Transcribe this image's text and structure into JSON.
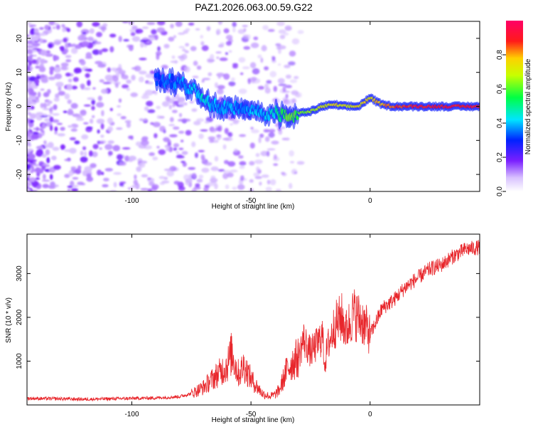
{
  "figure_title": "PAZ1.2026.063.00.59.G22",
  "colors": {
    "snr_line": "#e8262b",
    "ridge_low": "#7a1fff",
    "ridge_mid": "#00e5ff",
    "ridge_high": "#ff1a1a",
    "frame": "#000000"
  },
  "chart_data": [
    {
      "type": "heatmap",
      "title": "PAZ1.2026.063.00.59.G22",
      "xlabel": "Height of straight line (km)",
      "ylabel": "Frequency (Hz)",
      "xlim": [
        -144,
        46
      ],
      "ylim": [
        -25,
        25
      ],
      "x_ticks": [
        -100,
        -50,
        0
      ],
      "x_tick_labels": [
        "-100",
        "-50",
        "0"
      ],
      "y_ticks": [
        20,
        10,
        0,
        -10,
        -20
      ],
      "y_tick_labels": [
        "20",
        "10",
        "0",
        "-10",
        "-20"
      ],
      "colorbar": {
        "label": "Normalized spectral amplitude",
        "range": [
          0,
          1
        ],
        "ticks": [
          0.0,
          0.2,
          0.4,
          0.6,
          0.8
        ],
        "tick_labels": [
          "0.0",
          "0.2",
          "0.4",
          "0.6",
          "0.8"
        ],
        "colormap": "rainbow (purple-blue-cyan-green-yellow-red-magenta)"
      },
      "ridge": {
        "x": [
          -90,
          -85,
          -80,
          -75,
          -70,
          -65,
          -60,
          -55,
          -50,
          -45,
          -40,
          -35,
          -30,
          -25,
          -20,
          -15,
          -10,
          -5,
          0,
          5,
          10,
          20,
          30,
          46
        ],
        "freq": [
          8,
          7.5,
          7,
          5.5,
          3,
          0,
          0,
          -1,
          -1.5,
          -2,
          -2,
          -3,
          -2,
          -1.5,
          0,
          0.5,
          0,
          0,
          2.5,
          0.5,
          0,
          0,
          0,
          0
        ],
        "amplitude": [
          0.3,
          0.35,
          0.35,
          0.4,
          0.45,
          0.4,
          0.4,
          0.35,
          0.4,
          0.4,
          0.45,
          0.6,
          0.6,
          0.65,
          0.7,
          0.75,
          0.7,
          0.75,
          0.75,
          0.8,
          0.85,
          0.9,
          0.9,
          0.9
        ]
      }
    },
    {
      "type": "line",
      "xlabel": "Height of straight line (km)",
      "ylabel": "SNR (10 * v/v)",
      "xlim": [
        -144,
        46
      ],
      "ylim": [
        0,
        3900
      ],
      "x_ticks": [
        -100,
        -50,
        0
      ],
      "x_tick_labels": [
        "-100",
        "-50",
        "0"
      ],
      "y_ticks": [
        1000,
        2000,
        3000
      ],
      "y_tick_labels": [
        "1000",
        "2000",
        "3000"
      ],
      "series": [
        {
          "name": "SNR",
          "x": [
            -144,
            -130,
            -120,
            -110,
            -100,
            -90,
            -80,
            -75,
            -70,
            -65,
            -60,
            -58,
            -56,
            -55,
            -53,
            -50,
            -48,
            -45,
            -42,
            -40,
            -38,
            -35,
            -33,
            -30,
            -28,
            -25,
            -22,
            -20,
            -19,
            -18,
            -15,
            -12,
            -10,
            -7,
            -5,
            -3,
            0,
            5,
            10,
            15,
            20,
            25,
            30,
            35,
            40,
            46
          ],
          "values": [
            150,
            140,
            130,
            140,
            150,
            160,
            190,
            260,
            400,
            650,
            900,
            1200,
            800,
            700,
            900,
            600,
            450,
            250,
            200,
            230,
            350,
            800,
            950,
            1100,
            1500,
            1200,
            1400,
            1600,
            900,
            1300,
            1800,
            2000,
            1700,
            2100,
            2000,
            1900,
            1600,
            2200,
            2400,
            2700,
            2900,
            3100,
            3200,
            3400,
            3550,
            3600
          ]
        }
      ]
    }
  ]
}
